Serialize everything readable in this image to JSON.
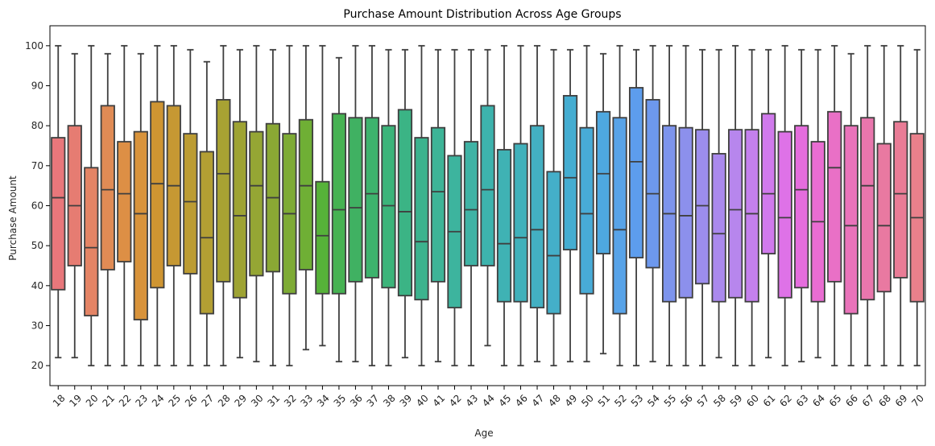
{
  "chart_data": {
    "type": "box",
    "title": "Purchase Amount Distribution Across Age Groups",
    "xlabel": "Age",
    "ylabel": "Purchase Amount",
    "ylim": [
      15,
      105
    ],
    "yticks": [
      20,
      30,
      40,
      50,
      60,
      70,
      80,
      90,
      100
    ],
    "grid": false,
    "legend": "none",
    "box_stroke_color": "#3f3f3f",
    "categories": [
      "18",
      "19",
      "20",
      "21",
      "22",
      "23",
      "24",
      "25",
      "26",
      "27",
      "28",
      "29",
      "30",
      "31",
      "32",
      "33",
      "34",
      "35",
      "36",
      "37",
      "38",
      "39",
      "40",
      "41",
      "42",
      "43",
      "44",
      "45",
      "46",
      "47",
      "48",
      "49",
      "50",
      "51",
      "52",
      "53",
      "54",
      "55",
      "56",
      "57",
      "58",
      "59",
      "60",
      "61",
      "62",
      "63",
      "64",
      "65",
      "66",
      "67",
      "68",
      "69",
      "70"
    ],
    "colors": [
      "#e8777b",
      "#e67c72",
      "#e48465",
      "#e08b55",
      "#dd8f45",
      "#d8933b",
      "#cf9532",
      "#c69833",
      "#bc9c33",
      "#b39f33",
      "#a8a233",
      "#9ea333",
      "#95a634",
      "#8aa834",
      "#7eab35",
      "#6faf35",
      "#56b239",
      "#46b252",
      "#40b162",
      "#3db36d",
      "#3cb47a",
      "#3bb485",
      "#3cb38e",
      "#3db497",
      "#3db49e",
      "#3fb3a5",
      "#3db3ad",
      "#3fb2b4",
      "#41b1bb",
      "#43b0c2",
      "#44afc9",
      "#45add1",
      "#48abd7",
      "#4ea8e0",
      "#58a3e8",
      "#5d9ded",
      "#6d98ed",
      "#7d94ec",
      "#8c90ec",
      "#9c8ded",
      "#aa89ed",
      "#b786ed",
      "#c480ed",
      "#d07aec",
      "#de72e7",
      "#e56ddd",
      "#e96dd2",
      "#e970c6",
      "#e973ba",
      "#e976ad",
      "#e979a1",
      "#e97c96",
      "#e9808b"
    ],
    "medians": [
      62,
      60,
      49.5,
      64,
      63,
      58,
      65.5,
      65,
      61,
      52,
      68,
      57.5,
      65,
      62,
      58,
      65,
      52.5,
      59,
      59.5,
      63,
      60,
      58.5,
      51,
      63.5,
      53.5,
      59,
      64,
      50.5,
      52,
      54,
      47.5,
      67,
      58,
      68,
      54,
      71,
      63,
      58,
      57.5,
      60,
      53,
      59,
      58,
      63,
      57,
      64,
      56,
      69.5,
      55,
      65,
      55,
      63,
      57
    ],
    "q1": [
      39,
      45,
      32.5,
      44,
      46,
      31.5,
      39.5,
      45,
      43,
      33,
      41,
      37,
      42.5,
      43.5,
      38,
      44,
      38,
      38,
      41,
      42,
      39.5,
      37.5,
      36.5,
      41,
      34.5,
      45,
      45,
      36,
      36,
      34.5,
      33,
      49,
      38,
      48,
      33,
      47,
      44.5,
      36,
      37,
      40.5,
      36,
      37,
      36,
      48,
      37,
      39.5,
      36,
      41,
      33,
      36.5,
      38.5,
      42,
      36
    ],
    "q3": [
      77,
      80,
      69.5,
      85,
      76,
      78.5,
      86,
      85,
      78,
      73.5,
      86.5,
      81,
      78.5,
      80.5,
      78,
      81.5,
      66,
      83,
      82,
      82,
      80,
      84,
      77,
      79.5,
      72.5,
      76,
      85,
      74,
      75.5,
      80,
      68.5,
      87.5,
      79.5,
      83.5,
      82,
      89.5,
      86.5,
      80,
      79.5,
      79,
      73,
      79,
      79,
      83,
      78.5,
      80,
      76,
      83.5,
      80,
      82,
      75.5,
      81,
      78
    ],
    "whisker_low": [
      22,
      22,
      20,
      20,
      20,
      20,
      20,
      20,
      20,
      20,
      20,
      22,
      21,
      20,
      20,
      24,
      25,
      21,
      21,
      20,
      20,
      22,
      20,
      21,
      20,
      20,
      25,
      20,
      20,
      21,
      20,
      21,
      21,
      23,
      20,
      20,
      21,
      20,
      20,
      20,
      22,
      20,
      20,
      22,
      20,
      21,
      22,
      20,
      20,
      20,
      20,
      20,
      20
    ],
    "whisker_high": [
      100,
      98,
      100,
      98,
      100,
      98,
      100,
      100,
      99,
      96,
      100,
      99,
      100,
      99,
      100,
      100,
      100,
      97,
      100,
      100,
      99,
      99,
      100,
      99,
      99,
      99,
      99,
      100,
      100,
      100,
      99,
      99,
      100,
      98,
      100,
      99,
      100,
      100,
      100,
      99,
      99,
      100,
      99,
      99,
      100,
      99,
      99,
      100,
      98,
      100,
      100,
      100,
      99
    ]
  }
}
